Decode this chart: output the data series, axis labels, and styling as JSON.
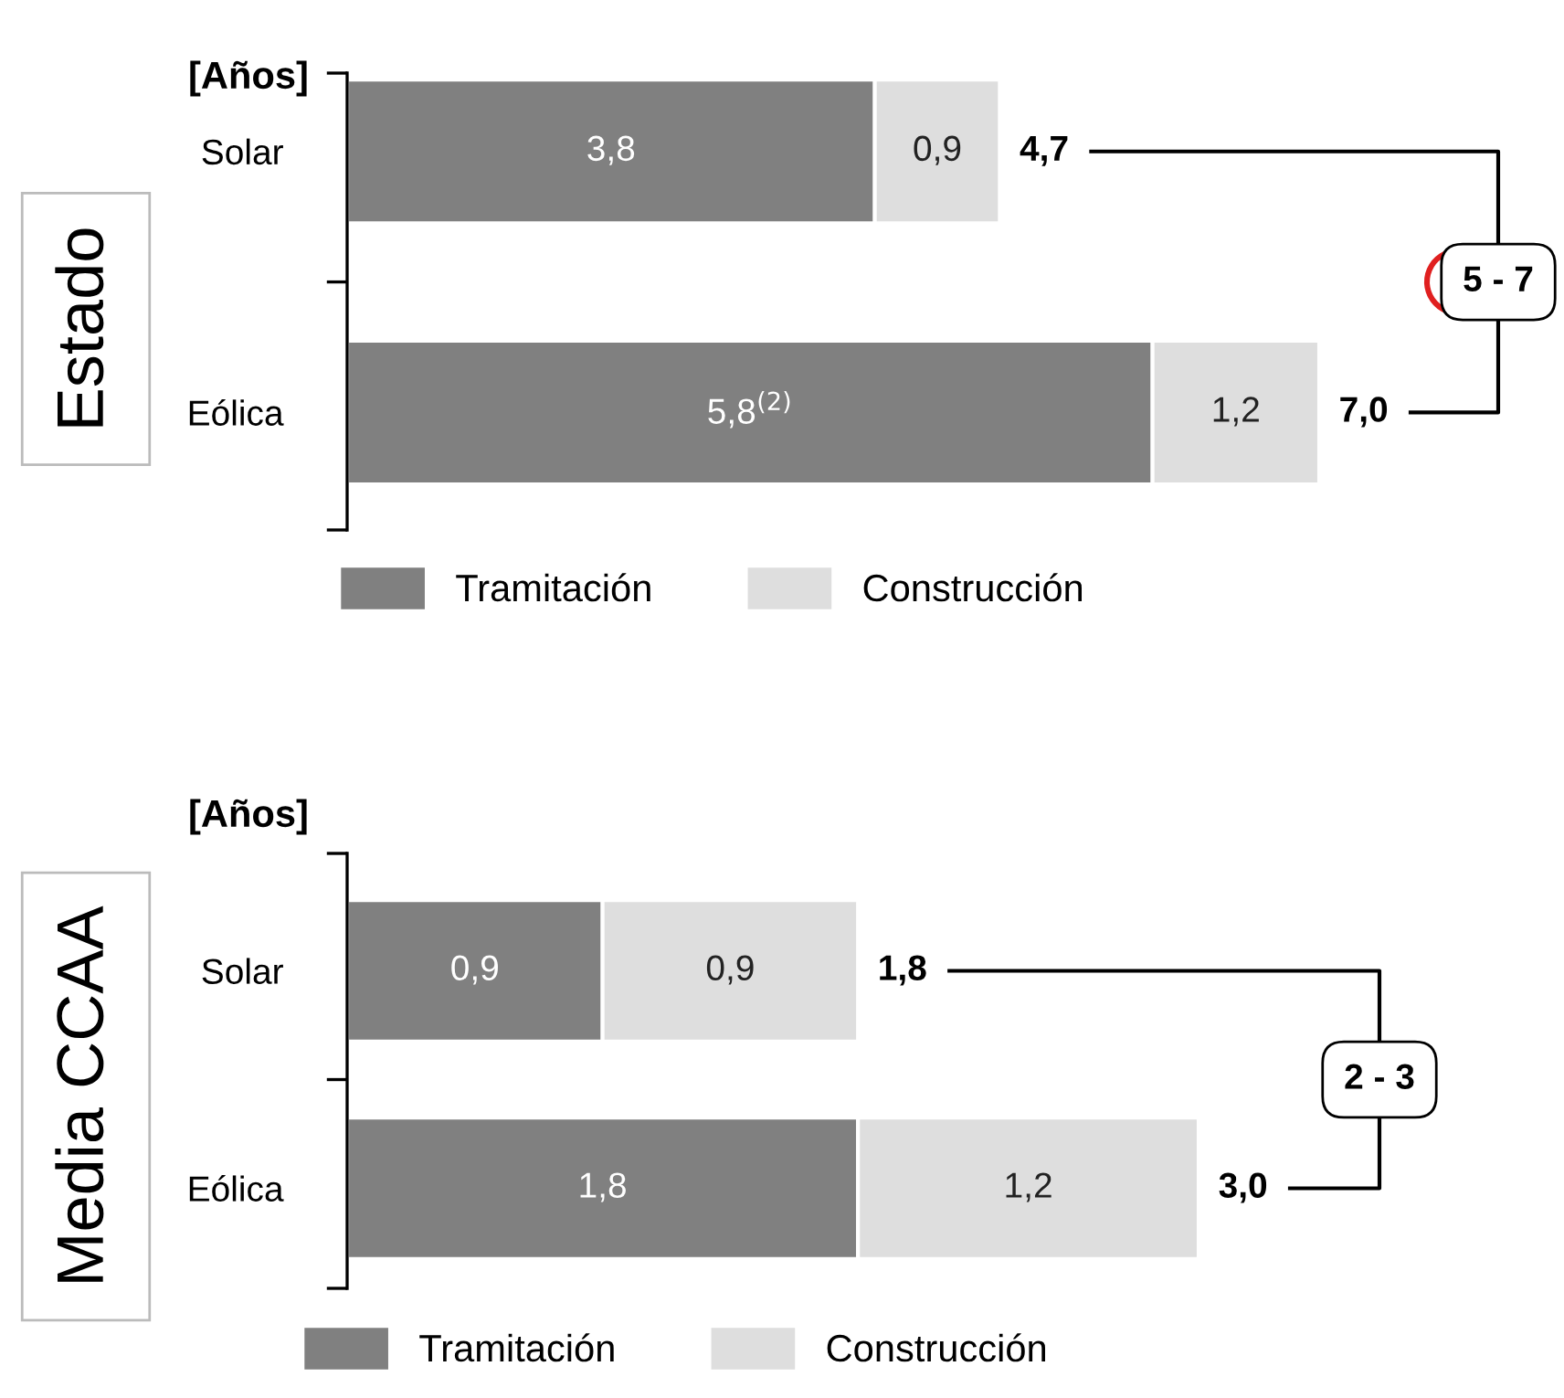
{
  "chart_data": [
    {
      "type": "bar",
      "orientation": "horizontal",
      "stacked": true,
      "title": "[Años]",
      "ylabel": "Estado",
      "categories": [
        "Solar",
        "Eólica"
      ],
      "tick_labels": "y",
      "legend": "bottom",
      "series": [
        {
          "name": "Tramitación",
          "color": "#808080",
          "values": [
            3.8,
            5.8
          ],
          "value_labels": [
            "3,8",
            "5,8$^{(2)}$"
          ]
        },
        {
          "name": "Construcción",
          "color": "#dedede",
          "values": [
            0.9,
            1.2
          ],
          "value_labels": [
            "0,9",
            "1,2"
          ]
        }
      ],
      "totals": [
        "4,7",
        "7,0"
      ],
      "annotations": [
        "5 - 7"
      ]
    },
    {
      "type": "bar",
      "orientation": "horizontal",
      "stacked": true,
      "title": "[Años]",
      "ylabel": "Media CCAA",
      "categories": [
        "Solar",
        "Eólica"
      ],
      "tick_labels": "y",
      "legend": "bottom",
      "series": [
        {
          "name": "Tramitación",
          "color": "#808080",
          "values": [
            0.9,
            1.8
          ],
          "value_labels": [
            "0,9",
            "1,8"
          ]
        },
        {
          "name": "Construcción",
          "color": "#dedede",
          "values": [
            0.9,
            1.2
          ],
          "value_labels": [
            "0,9",
            "1,2"
          ]
        }
      ],
      "totals": [
        "1,8",
        "3,0"
      ],
      "annotations": [
        "2 - 3"
      ]
    }
  ]
}
